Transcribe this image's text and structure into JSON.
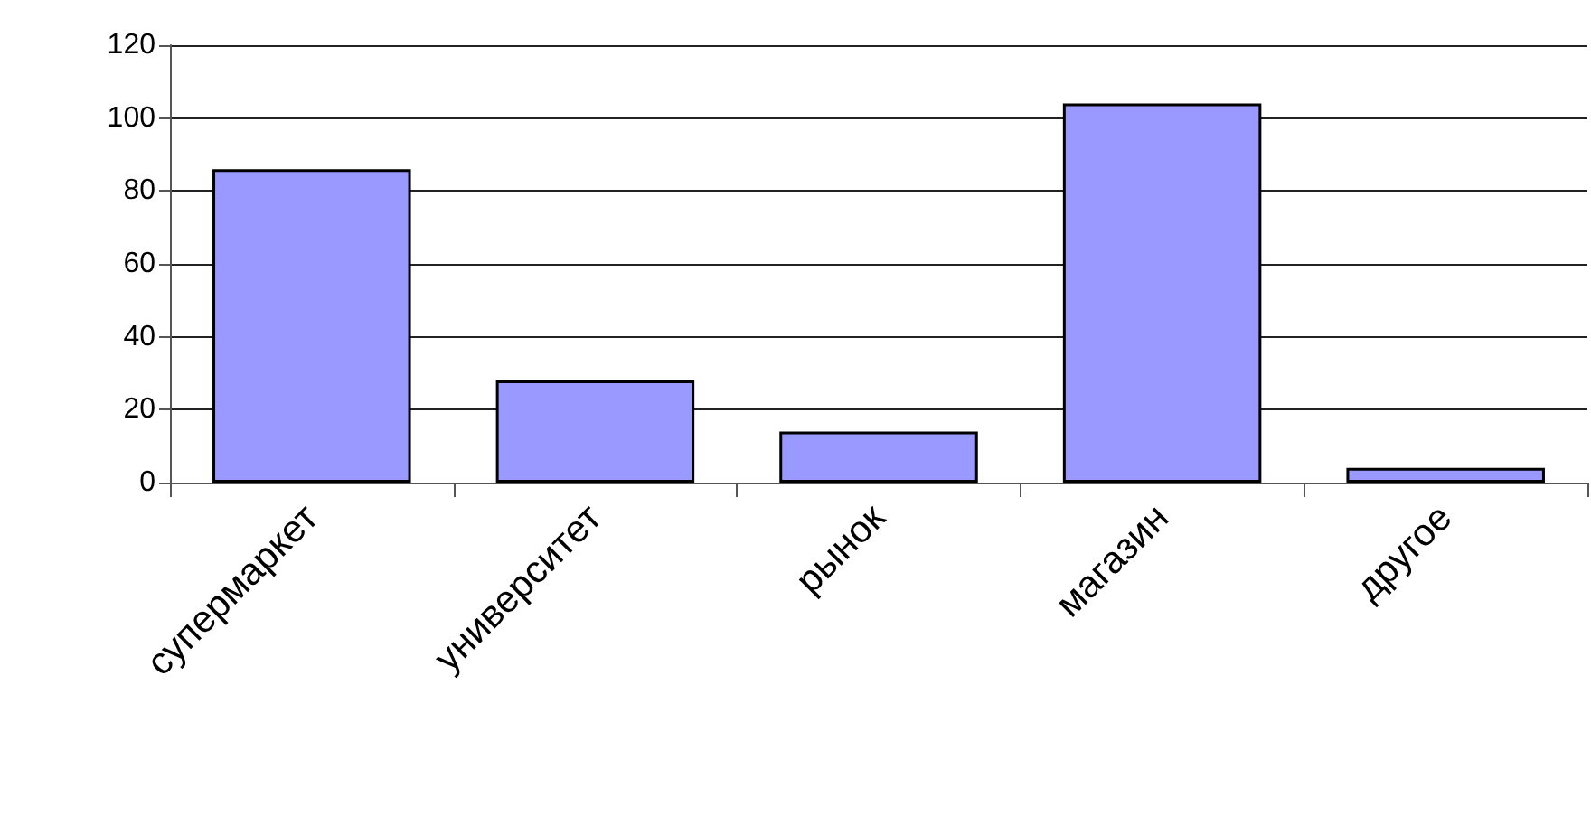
{
  "chart_data": {
    "type": "bar",
    "categories": [
      "супермаркет",
      "университет",
      "рынок",
      "магазин",
      "другое"
    ],
    "values": [
      86,
      28,
      14,
      104,
      4
    ],
    "color": "#9999ff",
    "ylim": [
      0,
      120
    ],
    "yticks": [
      0,
      20,
      40,
      60,
      80,
      100,
      120
    ],
    "grid": "y"
  }
}
